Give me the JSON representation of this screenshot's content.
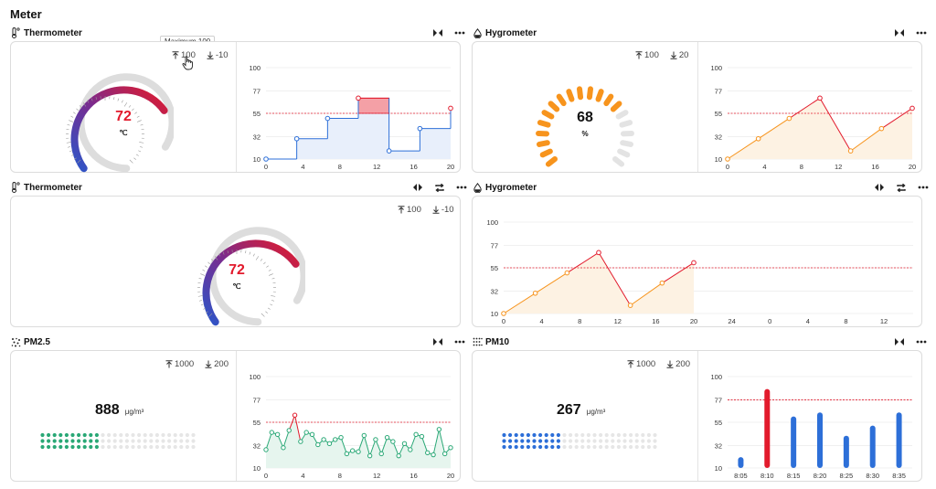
{
  "page": {
    "title": "Meter"
  },
  "tooltip": {
    "text": "Maximum 100"
  },
  "icons": {
    "thermometer": "thermometer-icon",
    "hygrometer": "droplet-icon",
    "pm25": "particles-icon",
    "pm10": "particles-icon",
    "collapse": "collapse-icon",
    "expand": "expand-icon",
    "refresh": "refresh-icon",
    "more": "more-icon",
    "max": "arrow-up-bar-icon",
    "min": "arrow-down-bar-icon"
  },
  "colors": {
    "red": "#e21a2c",
    "orange": "#f7941d",
    "blue": "#2d6fd8",
    "green": "#2aa876",
    "purple": "#6a2d8f",
    "grey": "#d9d9d9",
    "lightblue": "#e8effb",
    "lightorange": "#fdf2e3"
  },
  "widgets": {
    "therm1": {
      "title": "Thermometer",
      "max": "100",
      "min": "-10",
      "value": "72",
      "unit": "℃"
    },
    "hygro1": {
      "title": "Hygrometer",
      "max": "100",
      "min": "20",
      "value": "68",
      "unit": "%"
    },
    "therm2": {
      "title": "Thermometer",
      "max": "100",
      "min": "-10",
      "value": "72",
      "unit": "℃"
    },
    "hygro2": {
      "title": "Hygrometer"
    },
    "pm25": {
      "title": "PM2.5",
      "max": "1000",
      "min": "200",
      "value": "888",
      "unit": "μg/m³"
    },
    "pm10": {
      "title": "PM10",
      "max": "1000",
      "min": "200",
      "value": "267",
      "unit": "μg/m³"
    }
  },
  "chart_data": [
    {
      "id": "therm1-chart",
      "type": "line",
      "step": true,
      "x": [
        0,
        3.33,
        6.67,
        10,
        13.33,
        16.67,
        20
      ],
      "y": [
        10,
        30,
        50,
        70,
        18,
        40,
        60
      ],
      "yticks": [
        10,
        32,
        55,
        77,
        100
      ],
      "xticks": [
        0,
        4,
        8,
        12,
        16,
        20
      ],
      "threshold": 55,
      "ylim": [
        10,
        100
      ]
    },
    {
      "id": "hygro1-chart",
      "type": "line",
      "x": [
        0,
        3.33,
        6.67,
        10,
        13.33,
        16.67,
        20
      ],
      "y": [
        10,
        30,
        50,
        70,
        18,
        40,
        60
      ],
      "yticks": [
        10,
        32,
        55,
        77,
        100
      ],
      "xticks": [
        0,
        4,
        8,
        12,
        16,
        20
      ],
      "threshold": 55,
      "ylim": [
        10,
        100
      ]
    },
    {
      "id": "hygro2-chart",
      "type": "line",
      "x": [
        0,
        3.33,
        6.67,
        10,
        13.33,
        16.67,
        20
      ],
      "y": [
        10,
        30,
        50,
        70,
        18,
        40,
        60
      ],
      "yticks": [
        10,
        32,
        55,
        77,
        100
      ],
      "xticks": [
        "0",
        "4",
        "8",
        "12",
        "16",
        "20",
        "24",
        "0",
        "4",
        "8",
        "12"
      ],
      "threshold": 55,
      "ylim": [
        10,
        100
      ]
    },
    {
      "id": "pm25-chart",
      "type": "line",
      "x": [
        0,
        0.625,
        1.25,
        1.875,
        2.5,
        3.125,
        3.75,
        4.375,
        5,
        5.625,
        6.25,
        6.875,
        7.5,
        8.125,
        8.75,
        9.375,
        10,
        10.625,
        11.25,
        11.875,
        12.5,
        13.125,
        13.75,
        14.375,
        15,
        15.625,
        16.25,
        16.875,
        17.5,
        18.125,
        18.75,
        19.375,
        20
      ],
      "y": [
        28,
        45,
        43,
        30,
        47,
        62,
        36,
        45,
        43,
        33,
        38,
        34,
        38,
        40,
        24,
        27,
        26,
        42,
        22,
        38,
        24,
        40,
        36,
        22,
        34,
        28,
        43,
        41,
        25,
        23,
        48,
        24,
        30
      ],
      "yticks": [
        10,
        32,
        55,
        77,
        100
      ],
      "xticks": [
        0,
        4,
        8,
        12,
        16,
        20
      ],
      "threshold": 55,
      "ylim": [
        10,
        100
      ]
    },
    {
      "id": "pm10-chart",
      "type": "bar",
      "categories": [
        "8:05",
        "8:10",
        "8:15",
        "8:20",
        "8:25",
        "8:30",
        "8:35"
      ],
      "values": [
        18,
        85,
        58,
        62,
        39,
        49,
        62
      ],
      "yticks": [
        10,
        32,
        55,
        77,
        100
      ],
      "threshold": 77,
      "ylim": [
        10,
        100
      ]
    }
  ]
}
